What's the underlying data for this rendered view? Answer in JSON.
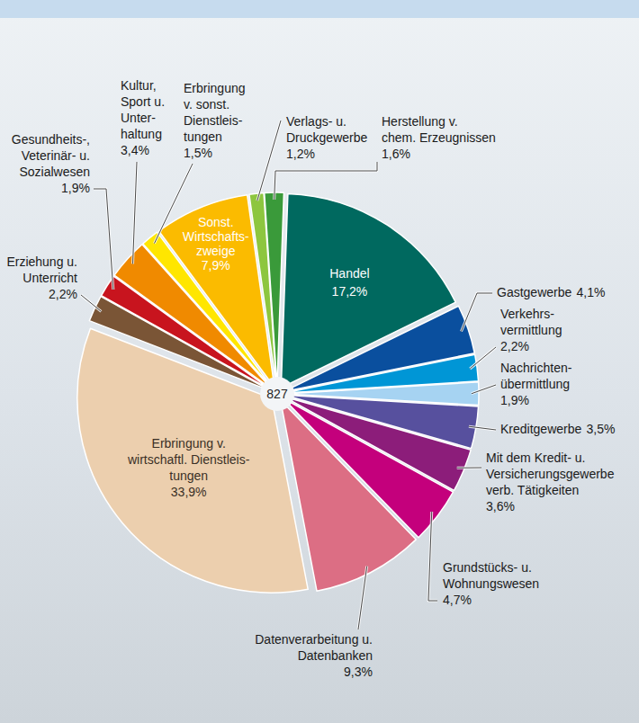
{
  "chart_data": {
    "type": "pie",
    "total": 827,
    "categories": [
      "Handel",
      "Gastgewerbe",
      "Verkehrs-\nvermittlung",
      "Nachrichten-\nübermittlung",
      "Kreditgewerbe",
      "Mit dem Kredit- u.\nVersicherungsgewerbe\nverb. Tätigkeiten",
      "Grundstücks- u.\nWohnungswesen",
      "Datenverarbeitung u.\nDatenbanken",
      "Erbringung v.\nwirtschaftl. Dienstleis-\ntungen",
      "Erziehung u.\nUnterricht",
      "Gesundheits-,\nVeterinär- u.\nSozialwesen",
      "Kultur,\nSport u.\nUnter-\nhaltung",
      "Erbringung\nv. sonst.\nDienstleis-\ntungen",
      "Sonst.\nWirtschafts-\nzweige",
      "Verlags- u.\nDruckgewerbe",
      "Herstellung v.\nchem. Erzeugnissen"
    ],
    "values": [
      17.2,
      4.1,
      2.2,
      1.9,
      3.5,
      3.6,
      4.7,
      9.3,
      33.9,
      2.2,
      1.9,
      3.4,
      1.5,
      7.9,
      1.2,
      1.6
    ],
    "value_labels": [
      "17,2%",
      "4,1%",
      "2,2%",
      "1,9%",
      "3,5%",
      "3,6%",
      "4,7%",
      "9,3%",
      "33,9%",
      "2,2%",
      "1,9%",
      "3,4%",
      "1,5%",
      "7,9%",
      "1,2%",
      "1,6%"
    ],
    "colors": [
      "#00695f",
      "#0a4f9e",
      "#0096d6",
      "#a6d3f2",
      "#57509e",
      "#8c1d7a",
      "#c4007c",
      "#dc6e84",
      "#eccfae",
      "#7a5536",
      "#c8141e",
      "#f08a00",
      "#ffe600",
      "#fbbb00",
      "#8dc63f",
      "#3a9a3a"
    ],
    "data_labels": true
  }
}
